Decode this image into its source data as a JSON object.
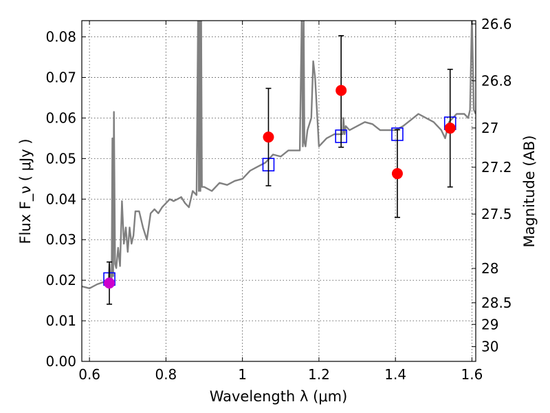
{
  "chart_data": {
    "type": "scatter",
    "xlabel": "Wavelength  λ (μm)",
    "ylabel": "Flux  F_ν  ( μJy )",
    "y2label": "Magnitude (AB)",
    "xlim": [
      0.58,
      1.61
    ],
    "ylim": [
      0.0,
      0.084
    ],
    "grid": true,
    "x_ticks": [
      0.6,
      0.8,
      1.0,
      1.2,
      1.4,
      1.6
    ],
    "x_tick_labels": [
      "0.6",
      "0.8",
      "1",
      "1.2",
      "1.4",
      "1.6"
    ],
    "y_ticks": [
      0.0,
      0.01,
      0.02,
      0.03,
      0.04,
      0.05,
      0.06,
      0.07,
      0.08
    ],
    "y_tick_labels": [
      "0.00",
      "0.01",
      "0.02",
      "0.03",
      "0.04",
      "0.05",
      "0.06",
      "0.07",
      "0.08"
    ],
    "mag_ticks": [
      26.6,
      26.8,
      27,
      27.2,
      27.5,
      28,
      28.5,
      29,
      30
    ],
    "mag_tick_labels": [
      "26.6",
      "26.8",
      "27",
      "27.2",
      "27.5",
      "28",
      "28.5",
      "29",
      "30"
    ],
    "series": [
      {
        "role": "model-spectrum",
        "style": "line",
        "color": "#808080",
        "x": [
          0.58,
          0.6,
          0.62,
          0.635,
          0.645,
          0.65,
          0.652,
          0.655,
          0.658,
          0.66,
          0.662,
          0.664,
          0.667,
          0.67,
          0.675,
          0.68,
          0.685,
          0.69,
          0.695,
          0.7,
          0.705,
          0.71,
          0.715,
          0.72,
          0.73,
          0.74,
          0.75,
          0.76,
          0.77,
          0.78,
          0.79,
          0.8,
          0.81,
          0.82,
          0.83,
          0.84,
          0.85,
          0.86,
          0.87,
          0.88,
          0.884,
          0.886,
          0.888,
          0.89,
          0.892,
          0.894,
          0.9,
          0.92,
          0.94,
          0.96,
          0.98,
          1.0,
          1.02,
          1.04,
          1.06,
          1.08,
          1.1,
          1.12,
          1.14,
          1.15,
          1.155,
          1.158,
          1.16,
          1.162,
          1.165,
          1.17,
          1.18,
          1.185,
          1.19,
          1.2,
          1.21,
          1.22,
          1.24,
          1.26,
          1.262,
          1.264,
          1.267,
          1.27,
          1.28,
          1.3,
          1.32,
          1.34,
          1.36,
          1.38,
          1.4,
          1.42,
          1.44,
          1.46,
          1.48,
          1.5,
          1.52,
          1.53,
          1.54,
          1.55,
          1.56,
          1.58,
          1.59,
          1.595,
          1.6,
          1.605,
          1.61
        ],
        "values": [
          0.0185,
          0.018,
          0.019,
          0.0195,
          0.019,
          0.02,
          0.024,
          0.0205,
          0.02,
          0.055,
          0.021,
          0.0615,
          0.024,
          0.023,
          0.028,
          0.0235,
          0.0395,
          0.029,
          0.033,
          0.027,
          0.033,
          0.029,
          0.031,
          0.037,
          0.037,
          0.033,
          0.03,
          0.0365,
          0.0375,
          0.0365,
          0.038,
          0.039,
          0.04,
          0.0395,
          0.04,
          0.0405,
          0.039,
          0.038,
          0.042,
          0.041,
          0.085,
          0.042,
          0.085,
          0.042,
          0.085,
          0.043,
          0.043,
          0.042,
          0.044,
          0.0435,
          0.0445,
          0.045,
          0.047,
          0.048,
          0.049,
          0.051,
          0.0505,
          0.052,
          0.052,
          0.052,
          0.085,
          0.053,
          0.085,
          0.054,
          0.053,
          0.057,
          0.06,
          0.074,
          0.07,
          0.053,
          0.054,
          0.055,
          0.056,
          0.056,
          0.056,
          0.06,
          0.056,
          0.058,
          0.057,
          0.058,
          0.059,
          0.0585,
          0.057,
          0.057,
          0.057,
          0.058,
          0.0595,
          0.061,
          0.06,
          0.059,
          0.057,
          0.055,
          0.059,
          0.06,
          0.061,
          0.061,
          0.06,
          0.062,
          0.085,
          0.062,
          0.061
        ]
      },
      {
        "role": "model-band-fluxes",
        "style": "open-square",
        "color": "#0000ff",
        "x": [
          0.652,
          1.068,
          1.258,
          1.405,
          1.543
        ],
        "values": [
          0.0203,
          0.0485,
          0.0555,
          0.056,
          0.0587
        ]
      },
      {
        "role": "observed-fluxes",
        "style": "filled-circle-errorbar",
        "color": "#ff0000",
        "x": [
          1.068,
          1.258,
          1.405,
          1.543
        ],
        "values": [
          0.0553,
          0.0668,
          0.0463,
          0.0575
        ],
        "err_low": [
          0.012,
          0.014,
          0.0108,
          0.0145
        ],
        "err_high": [
          0.012,
          0.0135,
          0.0108,
          0.0145
        ]
      },
      {
        "role": "observed-flux-optical",
        "style": "filled-circle-errorbar",
        "color": "#cc00cc",
        "x": [
          0.652
        ],
        "values": [
          0.0193
        ],
        "err_low": [
          0.0052
        ],
        "err_high": [
          0.0052
        ]
      }
    ]
  }
}
